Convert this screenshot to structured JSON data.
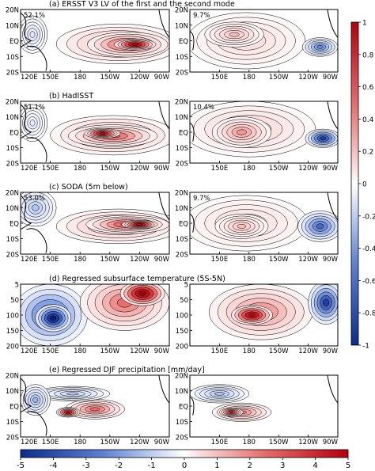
{
  "chart_data": {
    "type": "heatmap",
    "panels": [
      {
        "label": "(a) ERSST V3 LV of the first and the second mode",
        "kind": "map",
        "left": {
          "pct": "52.1%",
          "xticks": [
            "120E",
            "150E",
            "180",
            "150W",
            "120W",
            "90W"
          ],
          "yticks": [
            "20N",
            "10N",
            "EQ",
            "10S",
            "20S"
          ],
          "field": [
            {
              "lon": 0.66,
              "lat": 0.55,
              "rx": 0.42,
              "ry": 0.32,
              "v": 0.35
            },
            {
              "lon": 0.72,
              "lat": 0.56,
              "rx": 0.27,
              "ry": 0.2,
              "v": 0.6
            },
            {
              "lon": 0.77,
              "lat": 0.56,
              "rx": 0.14,
              "ry": 0.09,
              "v": 0.9
            },
            {
              "lon": 0.08,
              "lat": 0.4,
              "rx": 0.1,
              "ry": 0.3,
              "v": -0.2
            }
          ]
        },
        "right": {
          "pct": "9.7%",
          "xticks": [
            "150E",
            "180",
            "150W",
            "120W",
            "90W"
          ],
          "yticks": [
            "20N",
            "10N",
            "EQ",
            "10S",
            "20S"
          ],
          "field": [
            {
              "lon": 0.38,
              "lat": 0.5,
              "rx": 0.4,
              "ry": 0.45,
              "v": 0.2
            },
            {
              "lon": 0.3,
              "lat": 0.4,
              "rx": 0.2,
              "ry": 0.2,
              "v": 0.3
            },
            {
              "lon": 0.88,
              "lat": 0.6,
              "rx": 0.12,
              "ry": 0.15,
              "v": -0.55
            }
          ]
        }
      },
      {
        "label": "(b) HadISST",
        "kind": "map",
        "left": {
          "pct": "51.1%",
          "xticks": [
            "120E",
            "150E",
            "180",
            "150W",
            "120W",
            "90W"
          ],
          "yticks": [
            "20N",
            "10N",
            "EQ",
            "10S",
            "20S"
          ],
          "field": [
            {
              "lon": 0.62,
              "lat": 0.55,
              "rx": 0.42,
              "ry": 0.32,
              "v": 0.35
            },
            {
              "lon": 0.62,
              "lat": 0.56,
              "rx": 0.3,
              "ry": 0.18,
              "v": 0.55
            },
            {
              "lon": 0.55,
              "lat": 0.52,
              "rx": 0.12,
              "ry": 0.08,
              "v": 0.85
            },
            {
              "lon": 0.08,
              "lat": 0.35,
              "rx": 0.1,
              "ry": 0.3,
              "v": -0.15
            }
          ]
        },
        "right": {
          "pct": "10.4%",
          "xticks": [
            "150E",
            "180",
            "150W",
            "120W",
            "90W"
          ],
          "yticks": [
            "20N",
            "10N",
            "EQ",
            "10S",
            "20S"
          ],
          "field": [
            {
              "lon": 0.4,
              "lat": 0.45,
              "rx": 0.45,
              "ry": 0.45,
              "v": 0.25
            },
            {
              "lon": 0.35,
              "lat": 0.5,
              "rx": 0.2,
              "ry": 0.25,
              "v": 0.4
            },
            {
              "lon": 0.9,
              "lat": 0.6,
              "rx": 0.12,
              "ry": 0.15,
              "v": -0.8
            }
          ]
        }
      },
      {
        "label": "(c) SODA (5m below)",
        "kind": "map",
        "left": {
          "pct": "53.0%",
          "xticks": [
            "120E",
            "150E",
            "180",
            "150W",
            "120W",
            "90W"
          ],
          "yticks": [
            "20N",
            "10N",
            "EQ",
            "10S",
            "20S"
          ],
          "field": [
            {
              "lon": 0.66,
              "lat": 0.55,
              "rx": 0.42,
              "ry": 0.28,
              "v": 0.35
            },
            {
              "lon": 0.72,
              "lat": 0.52,
              "rx": 0.28,
              "ry": 0.15,
              "v": 0.6
            },
            {
              "lon": 0.8,
              "lat": 0.52,
              "rx": 0.12,
              "ry": 0.07,
              "v": 0.9
            },
            {
              "lon": 0.1,
              "lat": 0.25,
              "rx": 0.14,
              "ry": 0.3,
              "v": -0.35
            }
          ]
        },
        "right": {
          "pct": "9.7%",
          "xticks": [
            "150E",
            "180",
            "150W",
            "120W",
            "90W"
          ],
          "yticks": [
            "20N",
            "10N",
            "EQ",
            "10S",
            "20S"
          ],
          "field": [
            {
              "lon": 0.38,
              "lat": 0.5,
              "rx": 0.42,
              "ry": 0.45,
              "v": 0.2
            },
            {
              "lon": 0.35,
              "lat": 0.55,
              "rx": 0.18,
              "ry": 0.2,
              "v": 0.3
            },
            {
              "lon": 0.88,
              "lat": 0.55,
              "rx": 0.15,
              "ry": 0.25,
              "v": -0.65
            }
          ]
        }
      },
      {
        "label": "(d) Regressed subsurface temperature (5S-5N)",
        "kind": "depth",
        "left": {
          "xticks": [
            "120E",
            "150E",
            "180",
            "150W",
            "120W",
            "90W"
          ],
          "yticks": [
            "5",
            "50",
            "100",
            "150",
            "200"
          ],
          "field": [
            {
              "lon": 0.2,
              "lat": 0.5,
              "rx": 0.25,
              "ry": 0.5,
              "v": -0.7
            },
            {
              "lon": 0.22,
              "lat": 0.55,
              "rx": 0.12,
              "ry": 0.22,
              "v": -1.0
            },
            {
              "lon": 0.7,
              "lat": 0.3,
              "rx": 0.3,
              "ry": 0.45,
              "v": 0.5
            },
            {
              "lon": 0.82,
              "lat": 0.15,
              "rx": 0.15,
              "ry": 0.2,
              "v": 1.0
            }
          ]
        },
        "right": {
          "xticks": [
            "150E",
            "180",
            "150W",
            "120W",
            "90W"
          ],
          "yticks": [
            "5",
            "50",
            "100",
            "150",
            "200"
          ],
          "field": [
            {
              "lon": 0.48,
              "lat": 0.45,
              "rx": 0.35,
              "ry": 0.45,
              "v": 0.45
            },
            {
              "lon": 0.42,
              "lat": 0.5,
              "rx": 0.14,
              "ry": 0.16,
              "v": 0.9
            },
            {
              "lon": 0.92,
              "lat": 0.3,
              "rx": 0.12,
              "ry": 0.35,
              "v": -0.8
            }
          ]
        }
      },
      {
        "label": "(e) Regressed DJF precipitation [mm/day]",
        "kind": "map",
        "left": {
          "xticks": [
            "120E",
            "150E",
            "180",
            "150W",
            "120W",
            "90W"
          ],
          "yticks": [
            "20N",
            "10N",
            "EQ",
            "10S",
            "20S"
          ],
          "field": [
            {
              "lon": 0.5,
              "lat": 0.55,
              "rx": 0.2,
              "ry": 0.16,
              "v": 2.5
            },
            {
              "lon": 0.32,
              "lat": 0.6,
              "rx": 0.08,
              "ry": 0.08,
              "v": 4.0
            },
            {
              "lon": 0.35,
              "lat": 0.3,
              "rx": 0.25,
              "ry": 0.12,
              "v": -1.5
            },
            {
              "lon": 0.1,
              "lat": 0.4,
              "rx": 0.1,
              "ry": 0.25,
              "v": -2.0
            }
          ]
        },
        "right": {
          "xticks": [
            "150E",
            "180",
            "150W",
            "120W",
            "90W"
          ],
          "yticks": [
            "20N",
            "10N",
            "EQ",
            "10S",
            "20S"
          ],
          "field": [
            {
              "lon": 0.35,
              "lat": 0.6,
              "rx": 0.2,
              "ry": 0.15,
              "v": 2.2
            },
            {
              "lon": 0.28,
              "lat": 0.6,
              "rx": 0.08,
              "ry": 0.07,
              "v": 3.5
            },
            {
              "lon": 0.2,
              "lat": 0.3,
              "rx": 0.2,
              "ry": 0.15,
              "v": -1.8
            }
          ]
        }
      }
    ],
    "colorbar_right": {
      "ticks": [
        "1",
        "0.8",
        "0.6",
        "0.4",
        "0.2",
        "0",
        "-0.2",
        "-0.4",
        "-0.6",
        "-0.8",
        "-1"
      ],
      "range": [
        -1,
        1
      ]
    },
    "colorbar_bottom": {
      "ticks": [
        "-5",
        "-4",
        "-3",
        "-2",
        "-1",
        "0",
        "1",
        "2",
        "3",
        "4",
        "5"
      ],
      "range": [
        -5,
        5
      ]
    },
    "colors": {
      "positive": "#d0202a",
      "negative": "#1e3f9f",
      "white": "#ffffff",
      "land": "#000000"
    }
  }
}
